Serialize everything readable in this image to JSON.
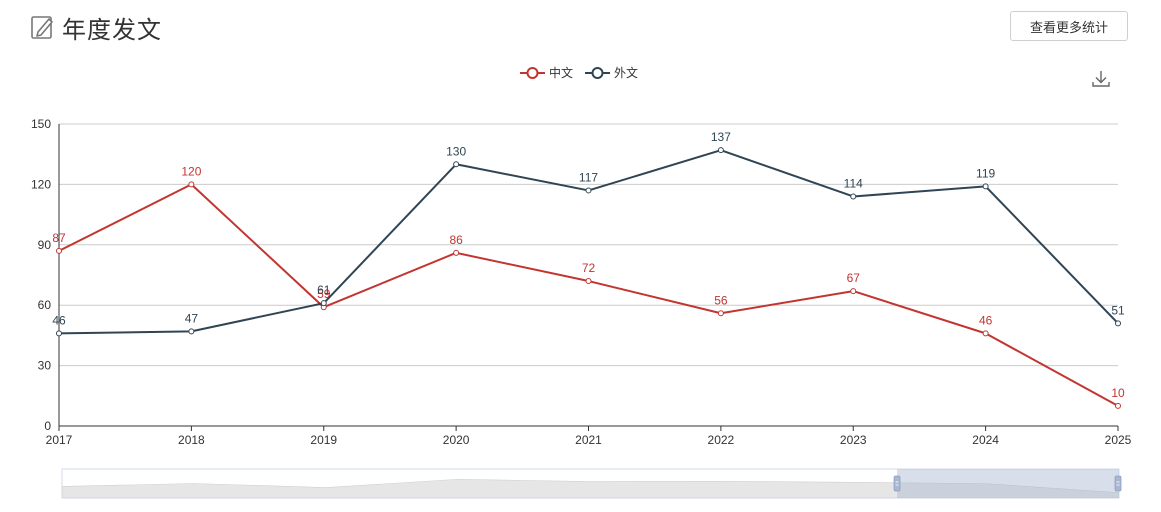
{
  "header": {
    "title": "年度发文",
    "more_button_label": "查看更多统计"
  },
  "colors": {
    "series_cn": "#c23531",
    "series_foreign": "#2f4554",
    "grid": "#cccccc",
    "axis": "#333333"
  },
  "chart_data": {
    "type": "line",
    "title": "年度发文",
    "categories": [
      "2017",
      "2018",
      "2019",
      "2020",
      "2021",
      "2022",
      "2023",
      "2024",
      "2025"
    ],
    "series": [
      {
        "name": "中文",
        "values": [
          87,
          120,
          59,
          86,
          72,
          56,
          67,
          46,
          10
        ]
      },
      {
        "name": "外文",
        "values": [
          46,
          47,
          61,
          130,
          117,
          137,
          114,
          119,
          51
        ]
      }
    ],
    "ylim": [
      0,
      150
    ],
    "yticks": [
      0,
      30,
      60,
      90,
      120,
      150
    ],
    "xlabel": "",
    "ylabel": "",
    "legend": "top-center",
    "grid": true,
    "data_zoom_range": [
      0.79,
      1.0
    ]
  }
}
